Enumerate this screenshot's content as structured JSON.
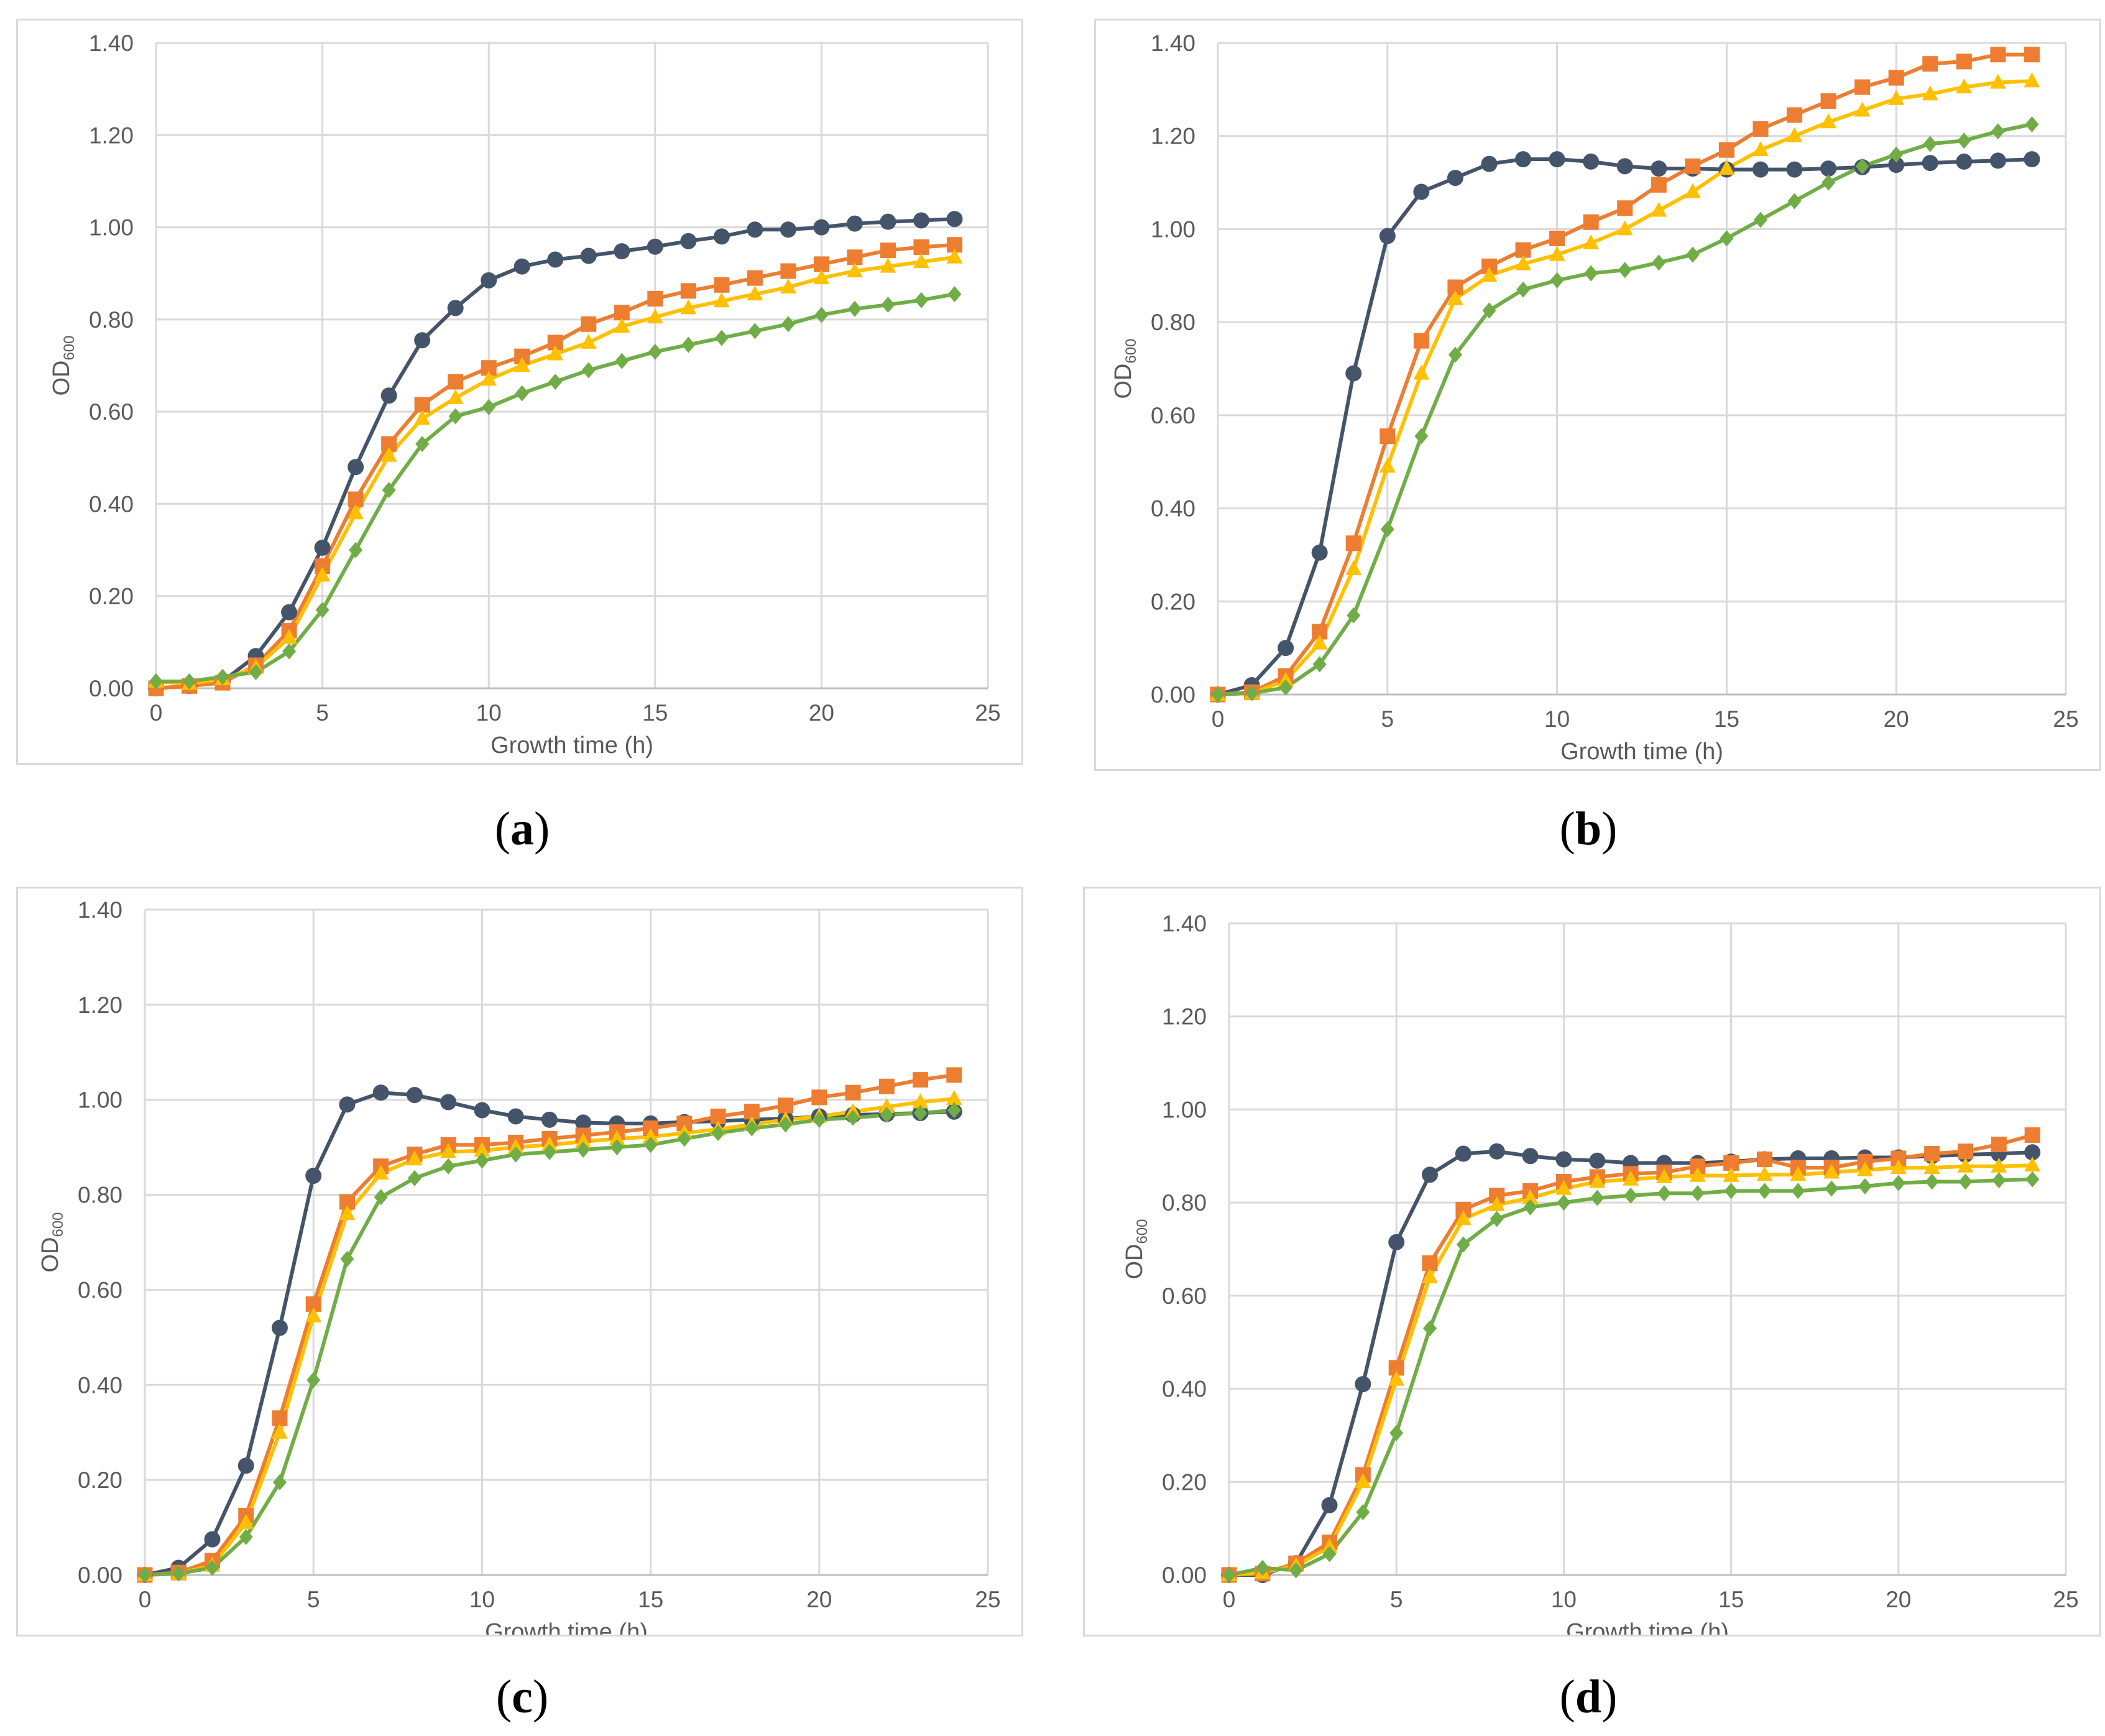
{
  "chart_data": [
    {
      "type": "line",
      "panel": "a",
      "xlabel": "Growth time (h)",
      "ylabel": "OD600",
      "xlim": [
        0,
        25
      ],
      "ylim": [
        0,
        1.4
      ],
      "xticks": [
        "0",
        "5",
        "10",
        "15",
        "20",
        "25"
      ],
      "yticks": [
        "0.00",
        "0.20",
        "0.40",
        "0.60",
        "0.80",
        "1.00",
        "1.20",
        "1.40"
      ],
      "grid": true,
      "x": [
        0,
        1,
        2,
        3,
        4,
        5,
        6,
        7,
        8,
        9,
        10,
        11,
        12,
        13,
        14,
        15,
        16,
        17,
        18,
        19,
        20,
        21,
        22,
        23,
        24
      ],
      "series": [
        {
          "name": "navy-circle",
          "color": "#44546a",
          "marker": "circle",
          "values": [
            0.0,
            0.005,
            0.015,
            0.07,
            0.165,
            0.305,
            0.48,
            0.635,
            0.755,
            0.825,
            0.885,
            0.915,
            0.93,
            0.938,
            0.948,
            0.958,
            0.97,
            0.98,
            0.995,
            0.995,
            1.0,
            1.008,
            1.012,
            1.015,
            1.018
          ]
        },
        {
          "name": "orange-square",
          "color": "#ed7d31",
          "marker": "square",
          "values": [
            0.0,
            0.005,
            0.012,
            0.05,
            0.125,
            0.265,
            0.41,
            0.53,
            0.615,
            0.665,
            0.695,
            0.72,
            0.75,
            0.79,
            0.815,
            0.845,
            0.862,
            0.875,
            0.89,
            0.905,
            0.92,
            0.935,
            0.95,
            0.957,
            0.962
          ]
        },
        {
          "name": "yellow-triangle",
          "color": "#ffc000",
          "marker": "triangle",
          "values": [
            0.015,
            0.01,
            0.02,
            0.045,
            0.11,
            0.245,
            0.38,
            0.505,
            0.585,
            0.63,
            0.67,
            0.7,
            0.725,
            0.75,
            0.785,
            0.805,
            0.825,
            0.84,
            0.855,
            0.87,
            0.89,
            0.905,
            0.915,
            0.925,
            0.935
          ]
        },
        {
          "name": "green-diamond",
          "color": "#70ad47",
          "marker": "diamond",
          "values": [
            0.015,
            0.015,
            0.025,
            0.035,
            0.08,
            0.17,
            0.3,
            0.43,
            0.53,
            0.59,
            0.61,
            0.64,
            0.665,
            0.69,
            0.71,
            0.73,
            0.745,
            0.76,
            0.775,
            0.79,
            0.81,
            0.823,
            0.832,
            0.842,
            0.855
          ]
        }
      ]
    },
    {
      "type": "line",
      "panel": "b",
      "xlabel": "Growth time (h)",
      "ylabel": "OD600",
      "xlim": [
        0,
        25
      ],
      "ylim": [
        0,
        1.4
      ],
      "xticks": [
        "0",
        "5",
        "10",
        "15",
        "20",
        "25"
      ],
      "yticks": [
        "0.00",
        "0.20",
        "0.40",
        "0.60",
        "0.80",
        "1.00",
        "1.20",
        "1.40"
      ],
      "grid": true,
      "x": [
        0,
        1,
        2,
        3,
        4,
        5,
        6,
        7,
        8,
        9,
        10,
        11,
        12,
        13,
        14,
        15,
        16,
        17,
        18,
        19,
        20,
        21,
        22,
        23,
        24
      ],
      "series": [
        {
          "name": "navy-circle",
          "color": "#44546a",
          "marker": "circle",
          "values": [
            0.0,
            0.02,
            0.1,
            0.305,
            0.69,
            0.985,
            1.08,
            1.11,
            1.14,
            1.15,
            1.15,
            1.145,
            1.135,
            1.13,
            1.13,
            1.128,
            1.128,
            1.128,
            1.13,
            1.133,
            1.138,
            1.142,
            1.145,
            1.147,
            1.15
          ]
        },
        {
          "name": "orange-square",
          "color": "#ed7d31",
          "marker": "square",
          "values": [
            0.0,
            0.005,
            0.04,
            0.135,
            0.325,
            0.555,
            0.76,
            0.875,
            0.92,
            0.955,
            0.98,
            1.015,
            1.045,
            1.095,
            1.135,
            1.17,
            1.215,
            1.245,
            1.275,
            1.305,
            1.325,
            1.355,
            1.36,
            1.375,
            1.375
          ]
        },
        {
          "name": "yellow-triangle",
          "color": "#ffc000",
          "marker": "triangle",
          "values": [
            0.0,
            0.003,
            0.03,
            0.11,
            0.27,
            0.49,
            0.69,
            0.85,
            0.9,
            0.925,
            0.945,
            0.97,
            1.0,
            1.04,
            1.08,
            1.13,
            1.17,
            1.2,
            1.23,
            1.255,
            1.28,
            1.29,
            1.305,
            1.315,
            1.318
          ]
        },
        {
          "name": "green-diamond",
          "color": "#70ad47",
          "marker": "diamond",
          "values": [
            0.0,
            0.003,
            0.015,
            0.065,
            0.17,
            0.355,
            0.555,
            0.73,
            0.825,
            0.87,
            0.89,
            0.905,
            0.912,
            0.928,
            0.945,
            0.98,
            1.02,
            1.06,
            1.1,
            1.135,
            1.16,
            1.183,
            1.19,
            1.21,
            1.225
          ]
        }
      ]
    },
    {
      "type": "line",
      "panel": "c",
      "xlabel": "Growth time (h)",
      "ylabel": "OD600",
      "xlim": [
        0,
        25
      ],
      "ylim": [
        0,
        1.4
      ],
      "xticks": [
        "0",
        "5",
        "10",
        "15",
        "20",
        "25"
      ],
      "yticks": [
        "0.00",
        "0.20",
        "0.40",
        "0.60",
        "0.80",
        "1.00",
        "1.20",
        "1.40"
      ],
      "grid": true,
      "x": [
        0,
        1,
        2,
        3,
        4,
        5,
        6,
        7,
        8,
        9,
        10,
        11,
        12,
        13,
        14,
        15,
        16,
        17,
        18,
        19,
        20,
        21,
        22,
        23,
        24
      ],
      "series": [
        {
          "name": "navy-circle",
          "color": "#44546a",
          "marker": "circle",
          "values": [
            0.0,
            0.015,
            0.075,
            0.23,
            0.52,
            0.84,
            0.99,
            1.015,
            1.01,
            0.995,
            0.978,
            0.965,
            0.958,
            0.952,
            0.95,
            0.95,
            0.953,
            0.955,
            0.958,
            0.96,
            0.965,
            0.968,
            0.97,
            0.972,
            0.975
          ]
        },
        {
          "name": "orange-square",
          "color": "#ed7d31",
          "marker": "square",
          "values": [
            0.0,
            0.005,
            0.03,
            0.125,
            0.33,
            0.57,
            0.785,
            0.86,
            0.885,
            0.905,
            0.905,
            0.91,
            0.918,
            0.925,
            0.932,
            0.94,
            0.95,
            0.965,
            0.975,
            0.988,
            1.005,
            1.015,
            1.028,
            1.042,
            1.052
          ]
        },
        {
          "name": "yellow-triangle",
          "color": "#ffc000",
          "marker": "triangle",
          "values": [
            0.0,
            0.003,
            0.02,
            0.11,
            0.3,
            0.545,
            0.76,
            0.845,
            0.875,
            0.89,
            0.893,
            0.9,
            0.905,
            0.912,
            0.918,
            0.922,
            0.93,
            0.938,
            0.948,
            0.958,
            0.965,
            0.975,
            0.985,
            0.995,
            1.002
          ]
        },
        {
          "name": "green-diamond",
          "color": "#70ad47",
          "marker": "diamond",
          "values": [
            0.0,
            0.003,
            0.015,
            0.08,
            0.195,
            0.41,
            0.665,
            0.795,
            0.835,
            0.86,
            0.872,
            0.885,
            0.89,
            0.895,
            0.9,
            0.905,
            0.918,
            0.93,
            0.94,
            0.948,
            0.958,
            0.962,
            0.968,
            0.972,
            0.978
          ]
        }
      ]
    },
    {
      "type": "line",
      "panel": "d",
      "xlabel": "Growth time (h)",
      "ylabel": "OD600",
      "xlim": [
        0,
        25
      ],
      "ylim": [
        0,
        1.4
      ],
      "xticks": [
        "0",
        "5",
        "10",
        "15",
        "20",
        "25"
      ],
      "yticks": [
        "0.00",
        "0.20",
        "0.40",
        "0.60",
        "0.80",
        "1.00",
        "1.20",
        "1.40"
      ],
      "grid": true,
      "x": [
        0,
        1,
        2,
        3,
        4,
        5,
        6,
        7,
        8,
        9,
        10,
        11,
        12,
        13,
        14,
        15,
        16,
        17,
        18,
        19,
        20,
        21,
        22,
        23,
        24
      ],
      "series": [
        {
          "name": "navy-circle",
          "color": "#44546a",
          "marker": "circle",
          "values": [
            0.0,
            0.0,
            0.025,
            0.15,
            0.41,
            0.715,
            0.86,
            0.905,
            0.91,
            0.9,
            0.893,
            0.89,
            0.885,
            0.885,
            0.885,
            0.888,
            0.893,
            0.895,
            0.895,
            0.897,
            0.897,
            0.9,
            0.903,
            0.905,
            0.908
          ]
        },
        {
          "name": "orange-square",
          "color": "#ed7d31",
          "marker": "square",
          "values": [
            0.0,
            0.003,
            0.025,
            0.07,
            0.215,
            0.445,
            0.67,
            0.785,
            0.815,
            0.825,
            0.845,
            0.855,
            0.862,
            0.865,
            0.878,
            0.885,
            0.893,
            0.875,
            0.875,
            0.888,
            0.895,
            0.905,
            0.91,
            0.925,
            0.945
          ]
        },
        {
          "name": "yellow-triangle",
          "color": "#ffc000",
          "marker": "triangle",
          "values": [
            0.0,
            0.005,
            0.02,
            0.06,
            0.2,
            0.42,
            0.64,
            0.765,
            0.795,
            0.81,
            0.83,
            0.845,
            0.85,
            0.855,
            0.858,
            0.858,
            0.86,
            0.86,
            0.865,
            0.87,
            0.875,
            0.875,
            0.878,
            0.878,
            0.88
          ]
        },
        {
          "name": "green-diamond",
          "color": "#70ad47",
          "marker": "diamond",
          "values": [
            0.0,
            0.015,
            0.01,
            0.045,
            0.135,
            0.305,
            0.53,
            0.71,
            0.765,
            0.79,
            0.8,
            0.81,
            0.815,
            0.82,
            0.82,
            0.825,
            0.825,
            0.825,
            0.83,
            0.835,
            0.842,
            0.845,
            0.845,
            0.848,
            0.85
          ]
        }
      ]
    }
  ],
  "panel_labels": {
    "a": "a",
    "b": "b",
    "c": "c",
    "d": "d"
  }
}
